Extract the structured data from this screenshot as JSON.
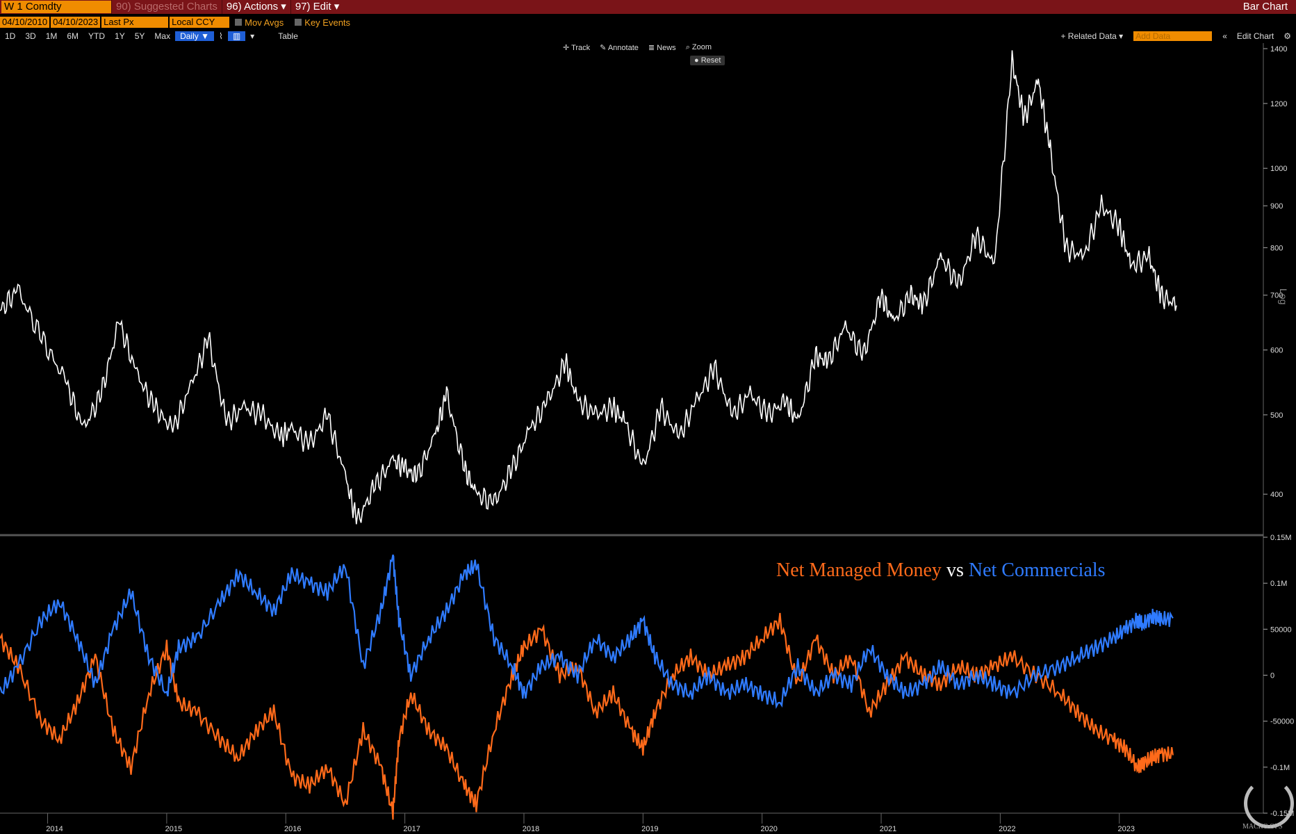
{
  "toolbar": {
    "ticker": "W 1 Comdty",
    "suggested": "90) Suggested Charts",
    "actions": "96) Actions ▾",
    "edit": "97) Edit ▾",
    "title": "Bar Chart"
  },
  "controls": {
    "start_date": "04/10/2010",
    "end_date": "04/10/2023",
    "field": "Last Px",
    "currency": "Local CCY",
    "mov_avgs": "Mov Avgs",
    "key_events": "Key Events",
    "ranges": [
      "1D",
      "3D",
      "1M",
      "6M",
      "YTD",
      "1Y",
      "5Y",
      "Max"
    ],
    "period": "Daily ▼",
    "table": "Table",
    "related": "+ Related Data ▾",
    "add_data": "Add Data",
    "edit_chart": "Edit Chart"
  },
  "tools": {
    "track": "Track",
    "annotate": "Annotate",
    "news": "News",
    "zoom": "Zoom",
    "reset": "Reset"
  },
  "annotation": {
    "part1": "Net Managed Money",
    "part2": "vs",
    "part3": "Net Commercials"
  },
  "logo": {
    "text": "MACRO OPS"
  },
  "colors": {
    "price": "#ffffff",
    "managed": "#ff6a1a",
    "commercials": "#2f7bff",
    "background": "#000000",
    "accent": "#f08c00"
  },
  "chart_data": [
    {
      "type": "line",
      "name": "W 1 Comdty",
      "y_scale": "log",
      "ylim": [
        360,
        1400
      ],
      "yticks": [
        400,
        500,
        600,
        700,
        800,
        900,
        1000,
        1200,
        1400
      ],
      "ytick_labels": [
        "400",
        "500",
        "600",
        "700",
        "800",
        "900",
        "1000",
        "1200",
        "1400"
      ],
      "y_axis_note": "Log",
      "x": [
        2013.6,
        2013.75,
        2013.95,
        2014.15,
        2014.3,
        2014.45,
        2014.6,
        2014.75,
        2014.9,
        2015.05,
        2015.2,
        2015.35,
        2015.5,
        2015.65,
        2015.8,
        2015.95,
        2016.05,
        2016.2,
        2016.35,
        2016.5,
        2016.6,
        2016.75,
        2016.9,
        2017.0,
        2017.1,
        2017.25,
        2017.35,
        2017.5,
        2017.6,
        2017.75,
        2017.9,
        2018.05,
        2018.2,
        2018.35,
        2018.45,
        2018.6,
        2018.75,
        2018.85,
        2019.0,
        2019.15,
        2019.3,
        2019.45,
        2019.6,
        2019.75,
        2019.9,
        2020.05,
        2020.2,
        2020.3,
        2020.45,
        2020.55,
        2020.7,
        2020.85,
        2021.0,
        2021.1,
        2021.25,
        2021.35,
        2021.5,
        2021.65,
        2021.8,
        2021.95,
        2022.1,
        2022.2,
        2022.32,
        2022.42,
        2022.55,
        2022.7,
        2022.85,
        2023.0,
        2023.1,
        2023.25,
        2023.35,
        2023.48
      ],
      "values": [
        670,
        710,
        620,
        550,
        480,
        530,
        650,
        560,
        510,
        480,
        540,
        620,
        490,
        510,
        500,
        470,
        480,
        460,
        500,
        420,
        370,
        410,
        440,
        430,
        420,
        470,
        530,
        430,
        400,
        390,
        430,
        480,
        520,
        580,
        520,
        500,
        510,
        490,
        430,
        510,
        470,
        520,
        570,
        500,
        530,
        500,
        520,
        490,
        590,
        580,
        640,
        590,
        700,
        650,
        700,
        680,
        780,
        720,
        830,
        760,
        1350,
        1150,
        1280,
        1050,
        800,
        780,
        900,
        850,
        760,
        780,
        700,
        680
      ]
    },
    {
      "type": "line",
      "ylim": [
        -150000,
        150000
      ],
      "yticks": [
        150000,
        100000,
        50000,
        0,
        -50000,
        -100000,
        -150000
      ],
      "ytick_labels": [
        "0.15M",
        "0.1M",
        "50000",
        "0",
        "-50000",
        "-0.1M",
        "-0.15M"
      ],
      "xtick_labels": [
        "2014",
        "2015",
        "2016",
        "2017",
        "2018",
        "2019",
        "2020",
        "2021",
        "2022",
        "2023"
      ],
      "xticks": [
        2014,
        2015,
        2016,
        2017,
        2018,
        2019,
        2020,
        2021,
        2022,
        2023
      ],
      "series": [
        {
          "name": "Net Managed Money",
          "color": "#ff6a1a",
          "x": [
            2013.6,
            2013.75,
            2013.95,
            2014.1,
            2014.25,
            2014.4,
            2014.55,
            2014.7,
            2014.85,
            2015.0,
            2015.1,
            2015.25,
            2015.45,
            2015.6,
            2015.75,
            2015.9,
            2016.05,
            2016.2,
            2016.35,
            2016.5,
            2016.65,
            2016.8,
            2016.9,
            2016.95,
            2017.05,
            2017.2,
            2017.35,
            2017.5,
            2017.6,
            2017.75,
            2017.9,
            2018.0,
            2018.15,
            2018.3,
            2018.45,
            2018.6,
            2018.75,
            2018.9,
            2019.0,
            2019.1,
            2019.25,
            2019.4,
            2019.55,
            2019.7,
            2019.85,
            2020.0,
            2020.15,
            2020.3,
            2020.45,
            2020.6,
            2020.75,
            2020.9,
            2021.05,
            2021.2,
            2021.35,
            2021.5,
            2021.65,
            2021.8,
            2021.95,
            2022.1,
            2022.3,
            2022.5,
            2022.65,
            2022.8,
            2022.95,
            2023.05,
            2023.15,
            2023.2,
            2023.28,
            2023.35,
            2023.45
          ],
          "values": [
            40000,
            10000,
            -50000,
            -70000,
            -30000,
            20000,
            -60000,
            -100000,
            -20000,
            30000,
            -30000,
            -40000,
            -70000,
            -90000,
            -60000,
            -40000,
            -110000,
            -120000,
            -100000,
            -140000,
            -60000,
            -100000,
            -150000,
            -70000,
            -20000,
            -60000,
            -80000,
            -120000,
            -140000,
            -60000,
            0,
            30000,
            50000,
            0,
            10000,
            -40000,
            -20000,
            -60000,
            -80000,
            -40000,
            0,
            20000,
            0,
            10000,
            20000,
            40000,
            60000,
            -10000,
            40000,
            0,
            20000,
            -40000,
            -10000,
            20000,
            0,
            -10000,
            10000,
            0,
            10000,
            20000,
            0,
            -20000,
            -40000,
            -60000,
            -70000,
            -80000,
            -100000,
            -95000,
            -90000,
            -85000,
            -87000
          ]
        },
        {
          "name": "Net Commercials",
          "color": "#2f7bff",
          "x": [
            2013.6,
            2013.75,
            2013.95,
            2014.1,
            2014.25,
            2014.4,
            2014.55,
            2014.7,
            2014.85,
            2015.0,
            2015.1,
            2015.25,
            2015.45,
            2015.6,
            2015.75,
            2015.9,
            2016.05,
            2016.2,
            2016.35,
            2016.5,
            2016.65,
            2016.8,
            2016.9,
            2016.95,
            2017.05,
            2017.2,
            2017.35,
            2017.5,
            2017.6,
            2017.75,
            2017.9,
            2018.0,
            2018.15,
            2018.3,
            2018.45,
            2018.6,
            2018.75,
            2018.9,
            2019.0,
            2019.1,
            2019.25,
            2019.4,
            2019.55,
            2019.7,
            2019.85,
            2020.0,
            2020.15,
            2020.3,
            2020.45,
            2020.6,
            2020.75,
            2020.9,
            2021.05,
            2021.2,
            2021.35,
            2021.5,
            2021.65,
            2021.8,
            2021.95,
            2022.1,
            2022.3,
            2022.5,
            2022.65,
            2022.8,
            2022.95,
            2023.05,
            2023.15,
            2023.2,
            2023.28,
            2023.35,
            2023.45
          ],
          "values": [
            -20000,
            10000,
            60000,
            80000,
            40000,
            -10000,
            50000,
            90000,
            20000,
            -20000,
            30000,
            40000,
            80000,
            110000,
            90000,
            70000,
            110000,
            100000,
            90000,
            120000,
            10000,
            70000,
            130000,
            60000,
            0,
            40000,
            70000,
            110000,
            120000,
            40000,
            10000,
            -20000,
            10000,
            20000,
            0,
            40000,
            20000,
            40000,
            60000,
            20000,
            -10000,
            -20000,
            0,
            -20000,
            -10000,
            -20000,
            -30000,
            10000,
            -20000,
            0,
            -10000,
            30000,
            0,
            -20000,
            -10000,
            10000,
            -10000,
            0,
            -10000,
            -20000,
            0,
            10000,
            20000,
            30000,
            40000,
            50000,
            60000,
            55000,
            65000,
            60000,
            62000
          ]
        }
      ]
    }
  ]
}
